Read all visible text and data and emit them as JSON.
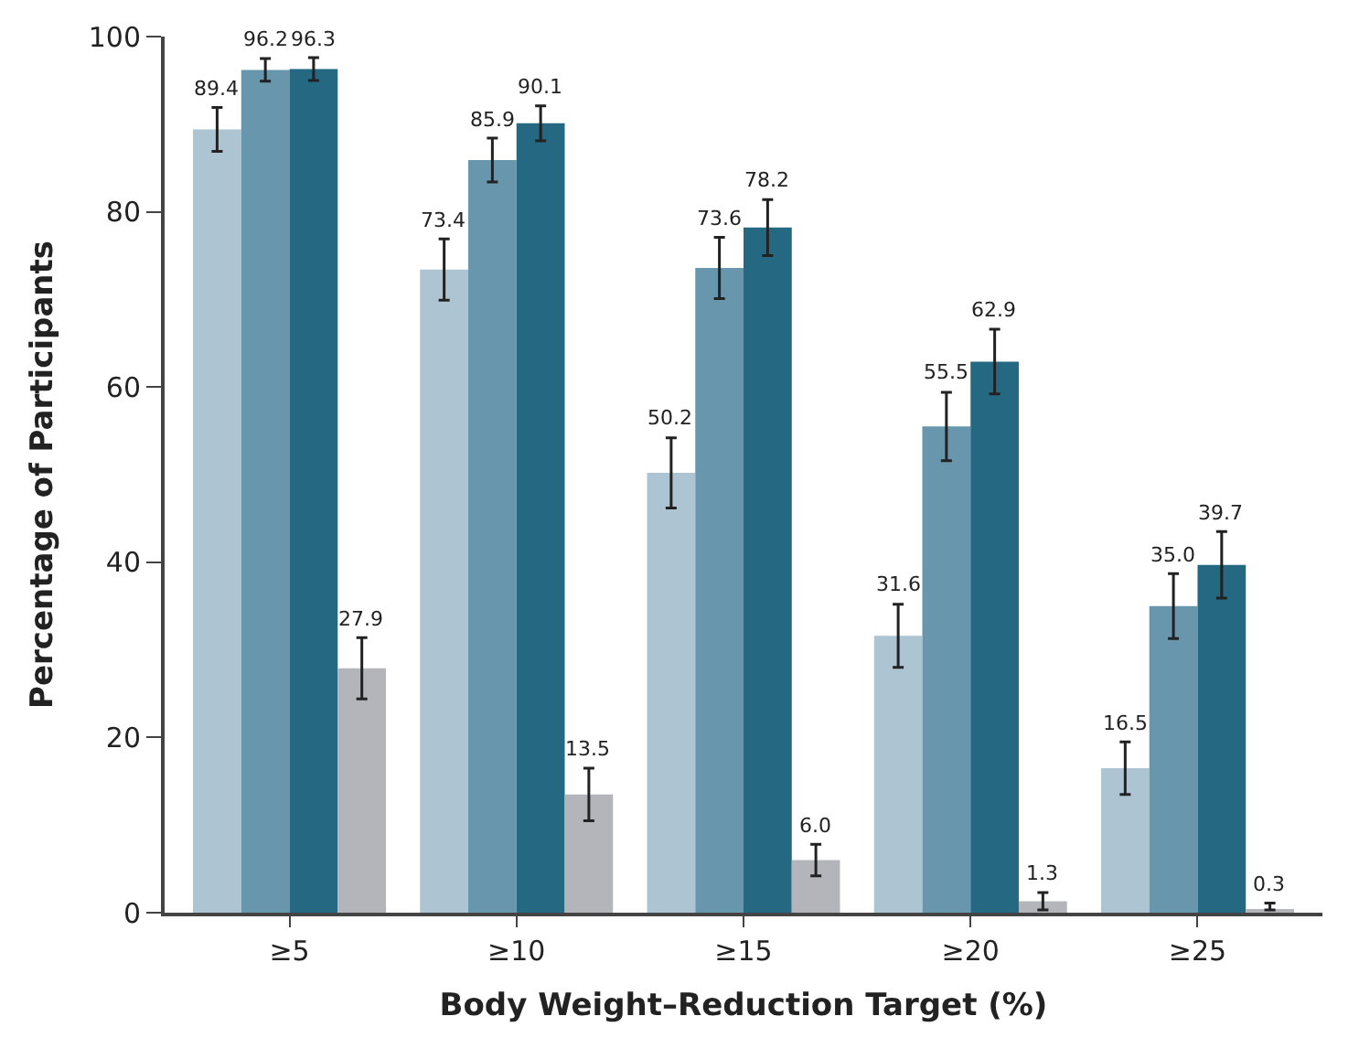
{
  "chart_data": {
    "type": "bar",
    "xlabel": "Body Weight–Reduction Target (%)",
    "ylabel": "Percentage of Participants",
    "categories": [
      "≥5",
      "≥10",
      "≥15",
      "≥20",
      "≥25"
    ],
    "series": [
      {
        "color": "#adc4d2",
        "values": [
          89.4,
          73.4,
          50.2,
          31.6,
          16.5
        ],
        "value_labels": [
          "89.4",
          "73.4",
          "50.2",
          "31.6",
          "16.5"
        ],
        "errors": [
          2.5,
          3.5,
          4,
          3.6,
          3
        ]
      },
      {
        "color": "#6897ad",
        "values": [
          96.2,
          85.9,
          73.6,
          55.5,
          35.0
        ],
        "value_labels": [
          "96.2",
          "85.9",
          "73.6",
          "55.5",
          "35.0"
        ],
        "errors": [
          1.3,
          2.5,
          3.5,
          3.9,
          3.7
        ]
      },
      {
        "color": "#246882",
        "values": [
          96.3,
          90.1,
          78.2,
          62.9,
          39.7
        ],
        "value_labels": [
          "96.3",
          "90.1",
          "78.2",
          "62.9",
          "39.7"
        ],
        "errors": [
          1.3,
          2,
          3.2,
          3.7,
          3.8
        ]
      },
      {
        "color": "#b4b5ba",
        "values": [
          27.9,
          13.5,
          6.0,
          1.3,
          0.3
        ],
        "value_labels": [
          "27.9",
          "13.5",
          "6.0",
          "1.3",
          "0.3"
        ],
        "errors": [
          3.5,
          3,
          1.8,
          1,
          [
            0,
            0.8
          ]
        ]
      }
    ],
    "ylim": [
      0,
      100
    ],
    "yticks": [
      0,
      20,
      40,
      60,
      80,
      100
    ]
  }
}
